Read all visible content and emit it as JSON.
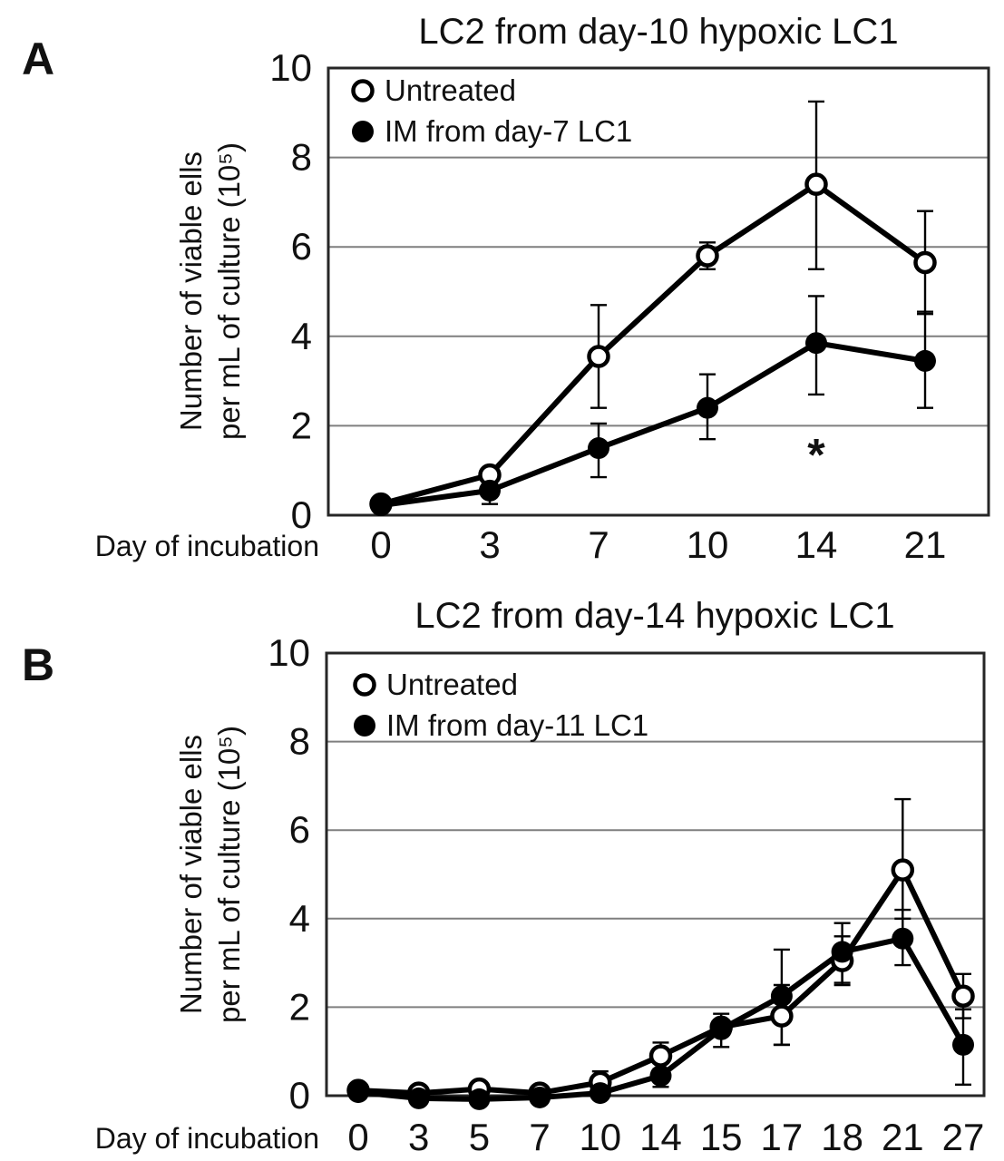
{
  "figure": {
    "background": "#ffffff",
    "colors": {
      "accent": "#1a6b99",
      "grid": "#7f7f7f",
      "axis": "#262626",
      "series": "#000000",
      "open_marker_fill": "#ffffff"
    }
  },
  "chart_data": [
    {
      "type": "line",
      "panel_label": "A",
      "title": "LC2 from day-10 hypoxic LC1",
      "xlabel": "Day of incubation",
      "ylabel": "Number of viable ells per mL of culture (10⁵)",
      "ylabel_lines": [
        "Number of viable ells",
        "per mL of culture (10⁵)"
      ],
      "ylim": [
        0,
        10
      ],
      "yticks": [
        0,
        2,
        4,
        6,
        8,
        10
      ],
      "grid": "horizontal",
      "legend_position": "top-left",
      "categories": [
        "0",
        "3",
        "7",
        "10",
        "14",
        "21"
      ],
      "series": [
        {
          "name": "Untreated",
          "marker": "open",
          "values": [
            0.25,
            0.9,
            3.55,
            5.8,
            7.4,
            5.65
          ],
          "errors": [
            null,
            null,
            [
              2.4,
              4.7
            ],
            [
              5.5,
              6.1
            ],
            [
              5.5,
              9.25
            ],
            [
              4.5,
              6.8
            ]
          ]
        },
        {
          "name": "IM from day-7 LC1",
          "marker": "filled",
          "values": [
            0.22,
            0.55,
            1.5,
            2.4,
            3.85,
            3.45
          ],
          "errors": [
            null,
            [
              0.25,
              0.9
            ],
            [
              0.85,
              2.05
            ],
            [
              1.7,
              3.15
            ],
            [
              2.7,
              4.9
            ],
            [
              2.4,
              4.55
            ]
          ]
        }
      ],
      "annotations": [
        {
          "text": "*",
          "x_index": 4,
          "y": 1.0
        }
      ]
    },
    {
      "type": "line",
      "panel_label": "B",
      "title": "LC2 from day-14 hypoxic LC1",
      "xlabel": "Day of incubation",
      "ylabel": "Number of viable ells per mL of culture (10⁵)",
      "ylabel_lines": [
        "Number of viable ells",
        "per mL of culture (10⁵)"
      ],
      "ylim": [
        0,
        10
      ],
      "yticks": [
        0,
        2,
        4,
        6,
        8,
        10
      ],
      "grid": "horizontal",
      "legend_position": "top-left",
      "categories": [
        "0",
        "3",
        "5",
        "7",
        "10",
        "14",
        "15",
        "17",
        "18",
        "21",
        "27"
      ],
      "series": [
        {
          "name": "Untreated",
          "marker": "open",
          "values": [
            0.12,
            0.06,
            0.15,
            0.06,
            0.3,
            0.9,
            1.55,
            1.8,
            3.05,
            5.1,
            2.25
          ],
          "errors": [
            null,
            null,
            null,
            null,
            [
              0.1,
              0.55
            ],
            [
              0.6,
              1.2
            ],
            null,
            [
              1.15,
              2.5
            ],
            [
              2.5,
              3.6
            ],
            [
              4.0,
              6.7
            ],
            [
              1.75,
              2.75
            ]
          ]
        },
        {
          "name": "IM from day-11 LC1",
          "marker": "filled",
          "values": [
            0.08,
            -0.06,
            -0.08,
            -0.04,
            0.06,
            0.45,
            1.5,
            2.25,
            3.25,
            3.55,
            1.15
          ],
          "errors": [
            null,
            null,
            null,
            null,
            null,
            [
              0.2,
              0.75
            ],
            [
              1.1,
              1.85
            ],
            [
              1.15,
              3.3
            ],
            [
              2.55,
              3.9
            ],
            [
              2.95,
              4.2
            ],
            [
              0.25,
              1.95
            ]
          ]
        }
      ],
      "annotations": []
    }
  ]
}
